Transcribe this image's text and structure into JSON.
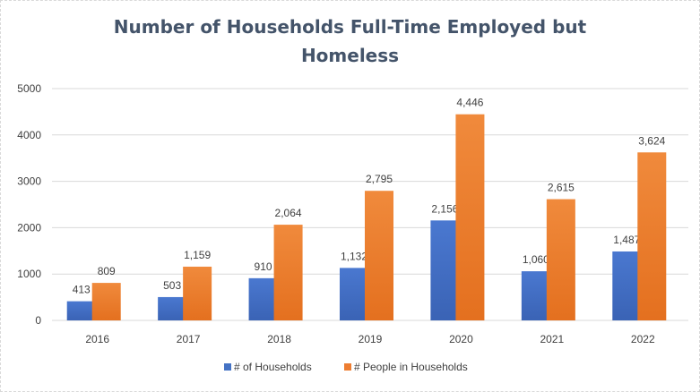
{
  "colors": {
    "households": "#4472c4",
    "people": "#ed7d31",
    "grid": "#d9d9d9",
    "title": "#44546a"
  },
  "chart_data": {
    "type": "bar",
    "title_lines": [
      "Number of Households  Full-Time  Employed but",
      "Homeless"
    ],
    "categories": [
      "2016",
      "2017",
      "2018",
      "2019",
      "2020",
      "2021",
      "2022"
    ],
    "series": [
      {
        "name": "# of Households",
        "values": [
          413,
          503,
          910,
          1132,
          2156,
          1060,
          1487
        ],
        "labels": [
          "413",
          "503",
          "910",
          "1,132",
          "2,156",
          "1,060",
          "1,487"
        ],
        "color": "#4472c4"
      },
      {
        "name": "# People in Households",
        "values": [
          809,
          1159,
          2064,
          2795,
          4446,
          2615,
          3624
        ],
        "labels": [
          "809",
          "1,159",
          "2,064",
          "2,795",
          "4,446",
          "2,615",
          "3,624"
        ],
        "color": "#ed7d31"
      }
    ],
    "ylim": [
      0,
      5000
    ],
    "yticks": [
      "0",
      "1000",
      "2000",
      "3000",
      "4000",
      "5000"
    ],
    "grid": true,
    "legend": "bottom"
  }
}
